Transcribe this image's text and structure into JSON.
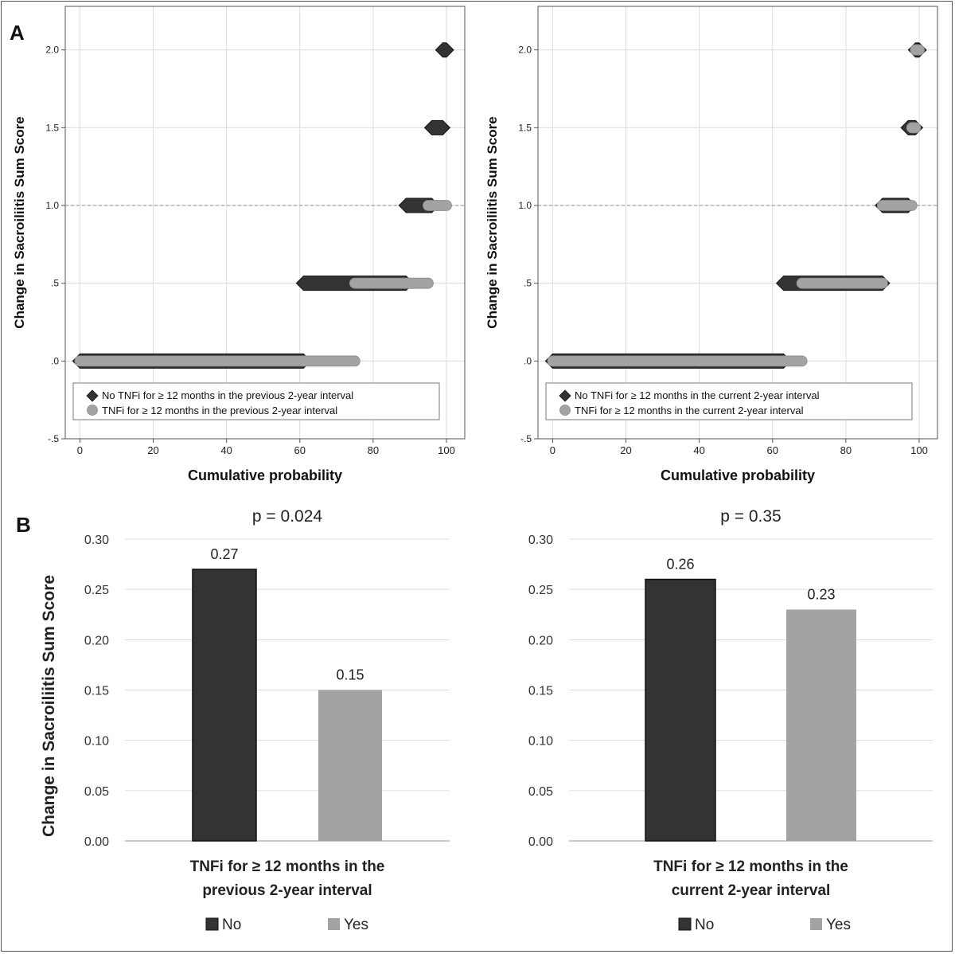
{
  "panels": {
    "a_label": "A",
    "b_label": "B"
  },
  "colors": {
    "no_tnfi": "#333333",
    "tnfi": "#a3a3a3",
    "grid": "#dcdcdc",
    "axis": "#555555",
    "ref_line": "#888888"
  },
  "chart_data": [
    {
      "type": "scatter",
      "panel": "A",
      "xlabel": "Cumulative probability",
      "ylabel": "Change in Sacroiliitis Sum Score",
      "xlim": [
        -4,
        105
      ],
      "ylim": [
        -0.5,
        2.28
      ],
      "x_ticks": [
        0,
        20,
        40,
        60,
        80,
        100
      ],
      "x_tick_labels": [
        "0",
        "20",
        "40",
        "60",
        "80",
        "100"
      ],
      "y_ticks": [
        -0.5,
        0.0,
        0.5,
        1.0,
        1.5,
        2.0
      ],
      "y_tick_labels": [
        "-.5",
        ".0",
        ".5",
        "1.0",
        "1.5",
        "2.0"
      ],
      "reference_line_y": 1.0,
      "grid": true,
      "legend": "bottom-left, inside plot",
      "series": [
        {
          "name": "No TNFi for ≥ 12 months in the previous 2-year interval",
          "marker": "diamond",
          "segments": [
            {
              "y": 0.0,
              "x_start": 0,
              "x_end": 61
            },
            {
              "y": 0.5,
              "x_start": 61,
              "x_end": 89
            },
            {
              "y": 1.0,
              "x_start": 89,
              "x_end": 96
            },
            {
              "y": 1.5,
              "x_start": 96,
              "x_end": 99
            },
            {
              "y": 2.0,
              "x_start": 99,
              "x_end": 100
            }
          ]
        },
        {
          "name": "TNFi for ≥ 12 months in the previous 2-year interval",
          "marker": "circle",
          "segments": [
            {
              "y": 0.0,
              "x_start": 0,
              "x_end": 75
            },
            {
              "y": 0.5,
              "x_start": 75,
              "x_end": 95
            },
            {
              "y": 1.0,
              "x_start": 95,
              "x_end": 100
            }
          ]
        }
      ]
    },
    {
      "type": "scatter",
      "panel": "A",
      "xlabel": "Cumulative probability",
      "ylabel": "Change in Sacroiliitis Sum Score",
      "xlim": [
        -4,
        105
      ],
      "ylim": [
        -0.5,
        2.28
      ],
      "x_ticks": [
        0,
        20,
        40,
        60,
        80,
        100
      ],
      "x_tick_labels": [
        "0",
        "20",
        "40",
        "60",
        "80",
        "100"
      ],
      "y_ticks": [
        -0.5,
        0.0,
        0.5,
        1.0,
        1.5,
        2.0
      ],
      "y_tick_labels": [
        "-.5",
        ".0",
        ".5",
        "1.0",
        "1.5",
        "2.0"
      ],
      "reference_line_y": 1.0,
      "grid": true,
      "legend": "bottom-left, inside plot",
      "series": [
        {
          "name": "No TNFi for ≥ 12 months in the current 2-year interval",
          "marker": "diamond",
          "segments": [
            {
              "y": 0.0,
              "x_start": 0,
              "x_end": 63
            },
            {
              "y": 0.5,
              "x_start": 63,
              "x_end": 90
            },
            {
              "y": 1.0,
              "x_start": 90,
              "x_end": 97
            },
            {
              "y": 1.5,
              "x_start": 97,
              "x_end": 99
            },
            {
              "y": 2.0,
              "x_start": 99,
              "x_end": 100
            }
          ]
        },
        {
          "name": "TNFi for ≥ 12 months in the current 2-year interval",
          "marker": "circle",
          "segments": [
            {
              "y": 0.0,
              "x_start": 0,
              "x_end": 68
            },
            {
              "y": 0.5,
              "x_start": 68,
              "x_end": 90
            },
            {
              "y": 1.0,
              "x_start": 90,
              "x_end": 98
            },
            {
              "y": 1.5,
              "x_start": 98,
              "x_end": 99
            },
            {
              "y": 2.0,
              "x_start": 99,
              "x_end": 100
            }
          ]
        }
      ]
    },
    {
      "type": "bar",
      "panel": "B",
      "title": "p = 0.024",
      "xlabel": [
        "TNFi for ≥ 12 months in the",
        "previous 2-year interval"
      ],
      "ylabel": "Change in Sacroiliitis Sum Score",
      "ylim": [
        0,
        0.3
      ],
      "y_ticks": [
        0.0,
        0.05,
        0.1,
        0.15,
        0.2,
        0.25,
        0.3
      ],
      "y_tick_labels": [
        "0.00",
        "0.05",
        "0.10",
        "0.15",
        "0.20",
        "0.25",
        "0.30"
      ],
      "categories": [
        "No",
        "Yes"
      ],
      "values": [
        0.27,
        0.15
      ],
      "data_labels": [
        "0.27",
        "0.15"
      ],
      "grid": true,
      "legend": "bottom-center"
    },
    {
      "type": "bar",
      "panel": "B",
      "title": "p = 0.35",
      "xlabel": [
        "TNFi for ≥ 12 months in the",
        "current 2-year interval"
      ],
      "ylabel": "",
      "ylim": [
        0,
        0.3
      ],
      "y_ticks": [
        0.0,
        0.05,
        0.1,
        0.15,
        0.2,
        0.25,
        0.3
      ],
      "y_tick_labels": [
        "0.00",
        "0.05",
        "0.10",
        "0.15",
        "0.20",
        "0.25",
        "0.30"
      ],
      "categories": [
        "No",
        "Yes"
      ],
      "values": [
        0.26,
        0.23
      ],
      "data_labels": [
        "0.26",
        "0.23"
      ],
      "grid": true,
      "legend": "bottom-center"
    }
  ]
}
